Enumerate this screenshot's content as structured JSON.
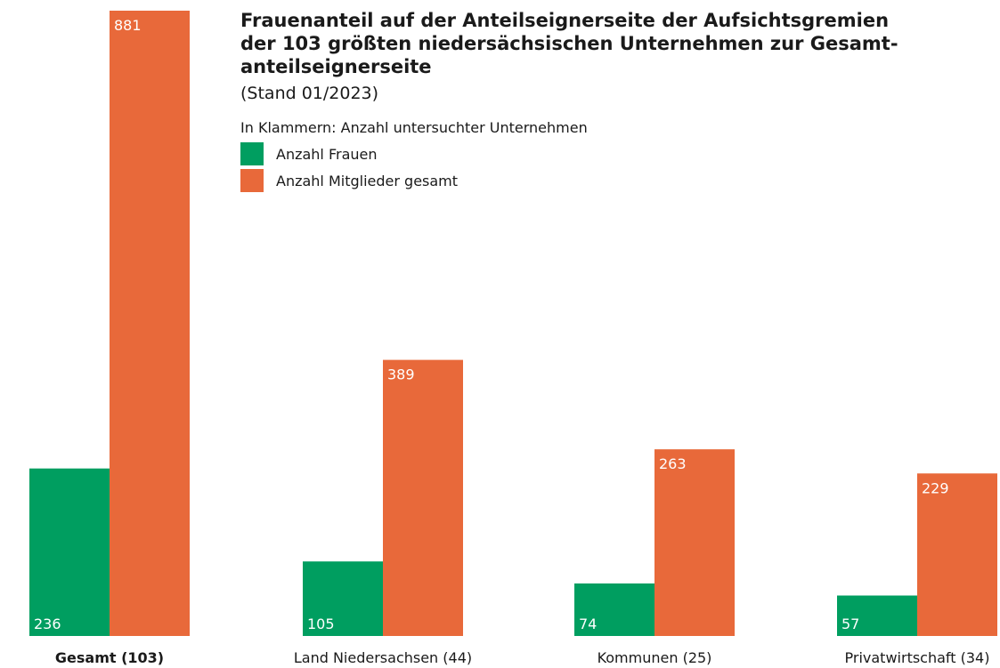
{
  "chart_data": {
    "type": "bar",
    "title": [
      "Frauenanteil auf der Anteilseignerseite der Aufsichtsgremien",
      "der 103 größten niedersächsischen Unternehmen zur Gesamt-",
      "anteilseignerseite"
    ],
    "subtitle": "(Stand 01/2023)",
    "note": "In Klammern: Anzahl untersuchter Unternehmen",
    "categories": [
      "Gesamt (103)",
      "Land Niedersachsen (44)",
      "Kommunen (25)",
      "Privatwirtschaft (34)"
    ],
    "series": [
      {
        "name": "Anzahl Frauen",
        "color": "#009e60",
        "values": [
          236,
          105,
          74,
          57
        ]
      },
      {
        "name": "Anzahl Mitglieder gesamt",
        "color": "#e8693a",
        "values": [
          881,
          389,
          263,
          229
        ]
      }
    ]
  }
}
